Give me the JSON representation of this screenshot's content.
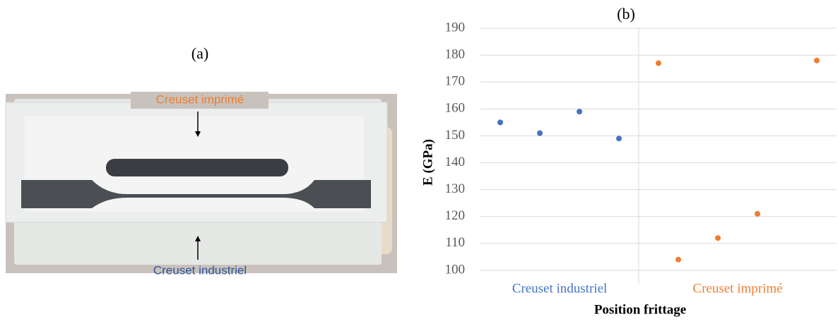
{
  "photo": {
    "label": "(a)",
    "top_annotation": "Creuset imprimé",
    "bottom_annotation": "Creuset industriel"
  },
  "chart_data": {
    "type": "scatter",
    "title": "(b)",
    "ylabel": "E (GPa)",
    "xlabel": "Position frittage",
    "xlim": [
      0.5,
      9.5
    ],
    "ylim": [
      95,
      190
    ],
    "yticks": [
      100,
      110,
      120,
      130,
      140,
      150,
      160,
      170,
      180,
      190
    ],
    "grid": true,
    "series": [
      {
        "name": "Creuset industriel",
        "color": "#4472c4",
        "x": [
          1,
          2,
          3,
          4
        ],
        "values": [
          155,
          151,
          159,
          149
        ]
      },
      {
        "name": "Creuset imprimé",
        "color": "#ed7d31",
        "x": [
          5,
          5.5,
          6.5,
          7.5,
          9
        ],
        "values": [
          177,
          104,
          112,
          121,
          178
        ]
      }
    ]
  }
}
